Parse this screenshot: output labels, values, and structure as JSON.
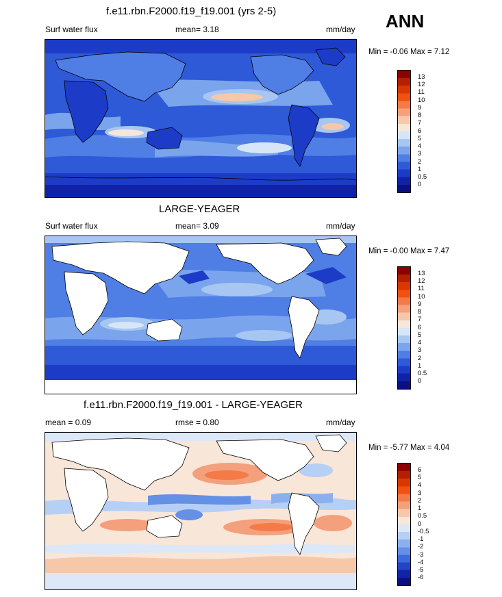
{
  "season": "ANN",
  "panels": [
    {
      "title": "f.e11.rbn.F2000.f19_f19.001 (yrs 2-5)",
      "left_label": "Surf water flux",
      "center_label": "mean=   3.18",
      "units": "mm/day",
      "minmax": "Min =  -0.06 Max =   7.12",
      "colorbar": {
        "levels": [
          "13",
          "12",
          "11",
          "10",
          "9",
          "8",
          "7",
          "6",
          "5",
          "4",
          "3",
          "2",
          "1",
          "0.5",
          "0"
        ],
        "colors": [
          "#8b0000",
          "#b22000",
          "#d83800",
          "#f05010",
          "#f47a48",
          "#f4a07c",
          "#f6c8aa",
          "#f8e6d8",
          "#d6e6f8",
          "#a8c6f2",
          "#7aa4ec",
          "#4f7ee4",
          "#2e5ad8",
          "#1c3cc8",
          "#0f22a8",
          "#0a1080"
        ]
      }
    },
    {
      "title": "LARGE-YEAGER",
      "left_label": "Surf water flux",
      "center_label": "mean=   3.09",
      "units": "mm/day",
      "minmax": "Min =  -0.00 Max =   7.47",
      "colorbar": {
        "levels": [
          "13",
          "12",
          "11",
          "10",
          "9",
          "8",
          "7",
          "6",
          "5",
          "4",
          "3",
          "2",
          "1",
          "0.5",
          "0"
        ],
        "colors": [
          "#8b0000",
          "#b22000",
          "#d83800",
          "#f05010",
          "#f47a48",
          "#f4a07c",
          "#f6c8aa",
          "#f8e6d8",
          "#d6e6f8",
          "#a8c6f2",
          "#7aa4ec",
          "#4f7ee4",
          "#2e5ad8",
          "#1c3cc8",
          "#0f22a8",
          "#0a1080"
        ]
      }
    },
    {
      "title": "f.e11.rbn.F2000.f19_f19.001 - LARGE-YEAGER",
      "left_label": "mean =   0.09",
      "center_label": "rmse =   0.80",
      "units": "mm/day",
      "minmax": "Min =  -5.77 Max =   4.04",
      "colorbar": {
        "levels": [
          "6",
          "5",
          "4",
          "3",
          "2",
          "1",
          "0.5",
          "0",
          "-0.5",
          "-1",
          "-2",
          "-3",
          "-4",
          "-5",
          "-6"
        ],
        "colors": [
          "#8b0000",
          "#b22000",
          "#d83800",
          "#f05010",
          "#f47a48",
          "#f4a07c",
          "#f6c8aa",
          "#f8e6d8",
          "#dce8f8",
          "#b6cff4",
          "#8cb0ee",
          "#6490e6",
          "#3c6adc",
          "#2444c8",
          "#1024a8",
          "#0a1080"
        ]
      }
    }
  ]
}
